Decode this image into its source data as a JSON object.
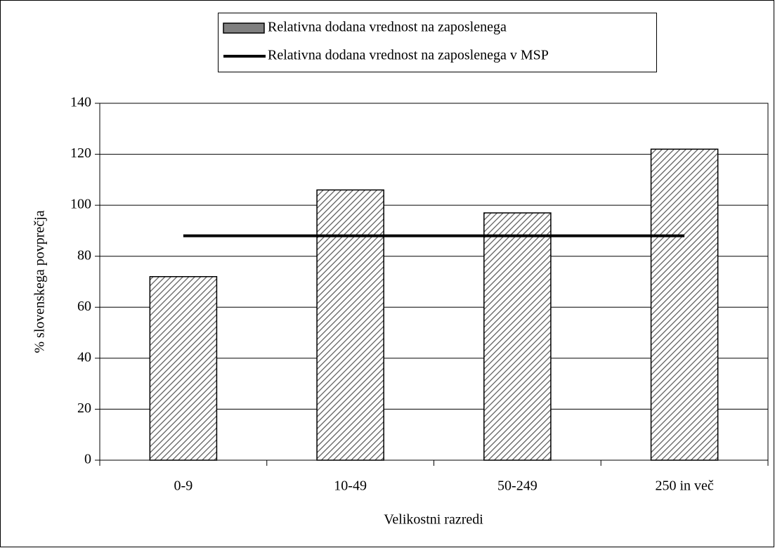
{
  "chart_data": {
    "type": "bar",
    "categories": [
      "0-9",
      "10-49",
      "50-249",
      "250 in več"
    ],
    "series": [
      {
        "name": "Relativna dodana vrednost na zaposlenega",
        "type": "bar",
        "color": "#808080",
        "values": [
          72,
          106,
          97,
          122
        ]
      },
      {
        "name": "Relativna dodana vrednost na zaposlenega v MSP",
        "type": "line",
        "color": "#000000",
        "values": [
          88,
          88,
          88,
          88
        ]
      }
    ],
    "x_label": "Velikostni razredi",
    "y_label": "% slovenskega povprečja",
    "ylim": [
      0,
      140
    ],
    "yticks": [
      0,
      20,
      40,
      60,
      80,
      100,
      120,
      140
    ],
    "grid": true,
    "legend": "top"
  }
}
